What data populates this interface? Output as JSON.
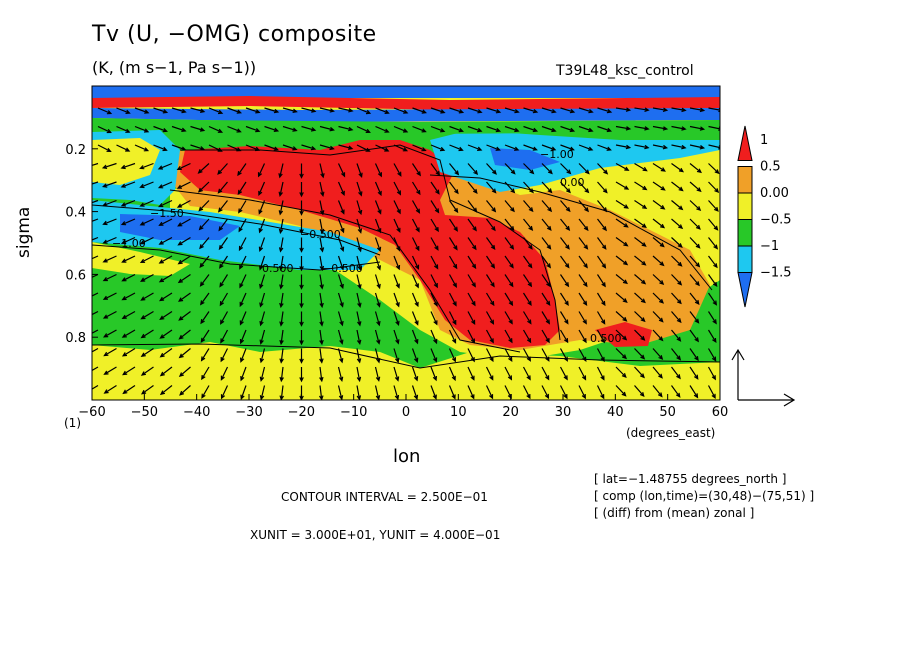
{
  "chart_data": {
    "type": "contour_vector",
    "title": "Tv (U, −OMG) composite",
    "units_label": "(K, (m s−1, Pa s−1))",
    "run_label": "T39L48_ksc_control",
    "xlabel": "lon",
    "ylabel": "sigma",
    "x_units_note": "(degrees_east)",
    "level_note": "(1)",
    "xlim": [
      -60,
      60
    ],
    "ylim": [
      1.0,
      0.0
    ],
    "x_ticks": [
      -60,
      -50,
      -40,
      -30,
      -20,
      -10,
      0,
      10,
      20,
      30,
      40,
      50,
      60
    ],
    "x_tick_labels": [
      "−60",
      "−50",
      "−40",
      "−30",
      "−20",
      "−10",
      "0",
      "10",
      "20",
      "30",
      "40",
      "50",
      "60"
    ],
    "y_ticks": [
      0.2,
      0.4,
      0.6,
      0.8
    ],
    "y_tick_labels": [
      "0.2",
      "0.4",
      "0.6",
      "0.8"
    ],
    "colorbar": {
      "levels": [
        -1.5,
        -1,
        -0.5,
        0,
        0.5,
        1
      ],
      "labels": [
        "−1.5",
        "−1",
        "−0.5",
        "0.00",
        "0.5",
        "1"
      ],
      "colors": [
        "#1e6ef0",
        "#1ec8f0",
        "#28c828",
        "#f0f028",
        "#f0a028",
        "#f01e1e"
      ]
    },
    "contour_labels": [
      "−1.50",
      "−1.00",
      "−0.500",
      "0.500",
      "0.00",
      "−0.500",
      "0.500",
      "−1.00"
    ],
    "contour_interval": "CONTOUR INTERVAL = 2.500E−01",
    "vector_units": "XUNIT = 3.000E+01, YUNIT = 4.000E−01",
    "info_lines": [
      "[ lat=−1.48755 degrees_north ]",
      "[ comp (lon,time)=(30,48)−(75,51) ]",
      "[ (diff) from (mean) zonal ]"
    ]
  },
  "colors": {
    "strong_neg": "#1e6ef0",
    "neg": "#1ec8f0",
    "weak_neg": "#28c828",
    "weak_pos": "#f0f028",
    "pos": "#f0a028",
    "strong_pos": "#f01e1e"
  }
}
